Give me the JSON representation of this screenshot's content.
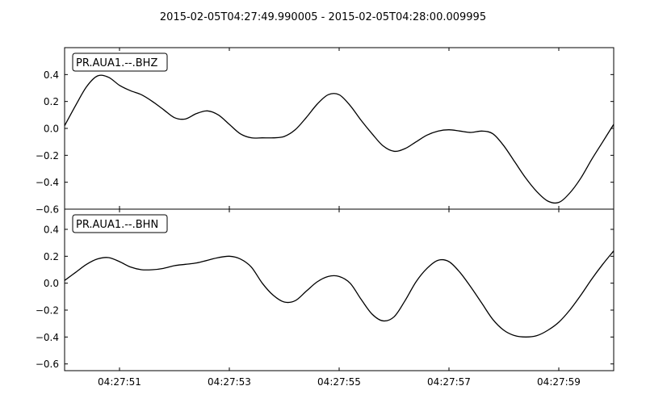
{
  "chart_data": {
    "type": "line",
    "title": "2015-02-05T04:27:49.990005  -  2015-02-05T04:28:00.009995",
    "x_tick_labels": [
      "04:27:51",
      "04:27:53",
      "04:27:55",
      "04:27:57",
      "04:27:59"
    ],
    "x_ticks_seconds": [
      51,
      53,
      55,
      57,
      59
    ],
    "x_range_seconds": [
      50.0,
      60.0
    ],
    "x_label_prefix": "04:27:",
    "grid": false,
    "line_color": "#000000",
    "panels": [
      {
        "label": "PR.AUA1.--.BHZ",
        "ylim": [
          -0.6,
          0.6
        ],
        "yticks": [
          0.4,
          0.2,
          0.0,
          -0.2,
          -0.4,
          -0.6
        ],
        "ytick_labels": [
          "0.4",
          "0.2",
          "0.0",
          "−0.2",
          "−0.4",
          "−0.6"
        ],
        "x": [
          50.0,
          50.2,
          50.4,
          50.6,
          50.8,
          51.0,
          51.2,
          51.4,
          51.6,
          51.8,
          52.0,
          52.2,
          52.4,
          52.6,
          52.8,
          53.0,
          53.2,
          53.4,
          53.6,
          53.8,
          54.0,
          54.2,
          54.4,
          54.6,
          54.8,
          55.0,
          55.2,
          55.4,
          55.6,
          55.8,
          56.0,
          56.2,
          56.4,
          56.6,
          56.8,
          57.0,
          57.2,
          57.4,
          57.6,
          57.8,
          58.0,
          58.2,
          58.4,
          58.6,
          58.8,
          59.0,
          59.2,
          59.4,
          59.6,
          59.8,
          60.0
        ],
        "values": [
          0.02,
          0.17,
          0.31,
          0.39,
          0.38,
          0.32,
          0.28,
          0.25,
          0.2,
          0.14,
          0.08,
          0.07,
          0.11,
          0.13,
          0.1,
          0.03,
          -0.04,
          -0.07,
          -0.07,
          -0.07,
          -0.06,
          -0.01,
          0.08,
          0.18,
          0.25,
          0.25,
          0.17,
          0.06,
          -0.04,
          -0.13,
          -0.17,
          -0.15,
          -0.1,
          -0.05,
          -0.02,
          -0.01,
          -0.02,
          -0.03,
          -0.02,
          -0.04,
          -0.13,
          -0.25,
          -0.37,
          -0.47,
          -0.54,
          -0.55,
          -0.48,
          -0.37,
          -0.23,
          -0.1,
          0.03
        ]
      },
      {
        "label": "PR.AUA1.--.BHN",
        "ylim": [
          -0.65,
          0.55
        ],
        "yticks": [
          0.4,
          0.2,
          0.0,
          -0.2,
          -0.4,
          -0.6
        ],
        "ytick_labels": [
          "0.4",
          "0.2",
          "0.0",
          "−0.2",
          "−0.4",
          "−0.6"
        ],
        "x": [
          50.0,
          50.2,
          50.4,
          50.6,
          50.8,
          51.0,
          51.2,
          51.4,
          51.6,
          51.8,
          52.0,
          52.2,
          52.4,
          52.6,
          52.8,
          53.0,
          53.2,
          53.4,
          53.6,
          53.8,
          54.0,
          54.2,
          54.4,
          54.6,
          54.8,
          55.0,
          55.2,
          55.4,
          55.6,
          55.8,
          56.0,
          56.2,
          56.4,
          56.6,
          56.8,
          57.0,
          57.2,
          57.4,
          57.6,
          57.8,
          58.0,
          58.2,
          58.4,
          58.6,
          58.8,
          59.0,
          59.2,
          59.4,
          59.6,
          59.8,
          60.0
        ],
        "values": [
          0.02,
          0.08,
          0.14,
          0.18,
          0.19,
          0.16,
          0.12,
          0.1,
          0.1,
          0.11,
          0.13,
          0.14,
          0.15,
          0.17,
          0.19,
          0.2,
          0.18,
          0.12,
          0.0,
          -0.09,
          -0.14,
          -0.13,
          -0.06,
          0.01,
          0.05,
          0.05,
          0.0,
          -0.12,
          -0.23,
          -0.28,
          -0.25,
          -0.13,
          0.01,
          0.11,
          0.17,
          0.16,
          0.08,
          -0.03,
          -0.15,
          -0.27,
          -0.35,
          -0.39,
          -0.4,
          -0.39,
          -0.35,
          -0.29,
          -0.2,
          -0.09,
          0.03,
          0.14,
          0.24
        ]
      }
    ]
  }
}
